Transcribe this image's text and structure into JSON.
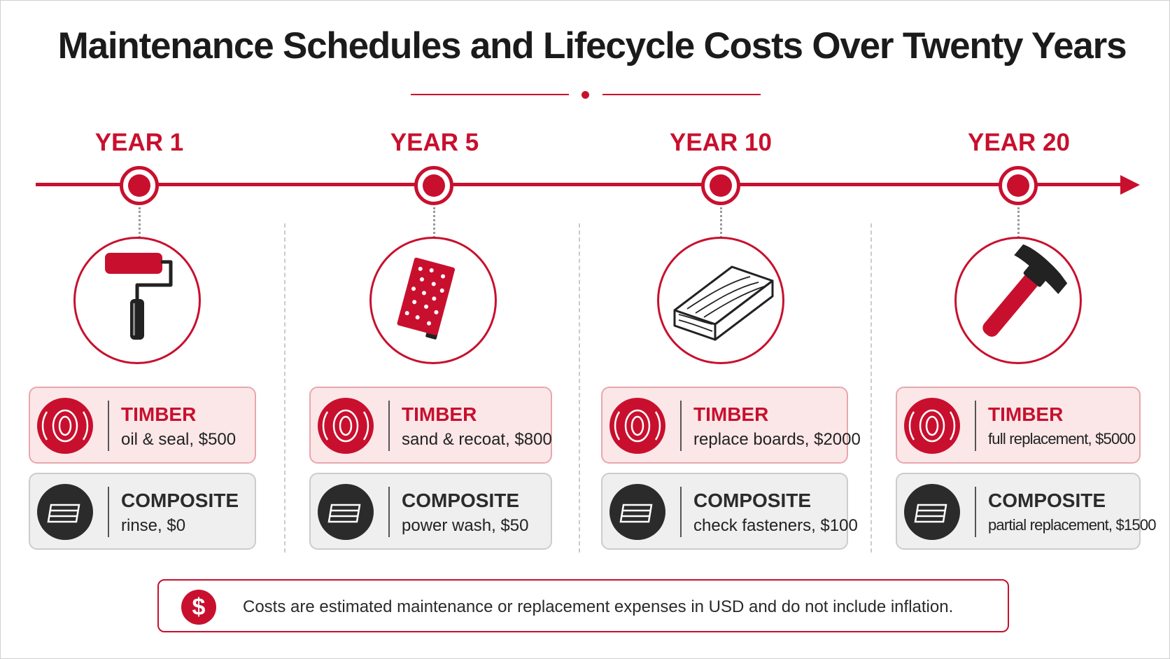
{
  "title": "Maintenance Schedules and Lifecycle Costs Over Twenty Years",
  "colors": {
    "accent": "#c8102e",
    "dark": "#2b2b2b",
    "timber_card": "#fbe7e8",
    "composite_card": "#efefef"
  },
  "milestones": [
    {
      "year_label": "YEAR 1",
      "icon": "paint-roller-icon",
      "timber": {
        "material": "TIMBER",
        "task": "oil & seal, $500"
      },
      "composite": {
        "material": "COMPOSITE",
        "task": "rinse, $0"
      }
    },
    {
      "year_label": "YEAR 5",
      "icon": "sanding-block-icon",
      "timber": {
        "material": "TIMBER",
        "task": "sand & recoat, $800"
      },
      "composite": {
        "material": "COMPOSITE",
        "task": "power wash, $50"
      }
    },
    {
      "year_label": "YEAR 10",
      "icon": "wood-board-icon",
      "timber": {
        "material": "TIMBER",
        "task": "replace boards, $2000"
      },
      "composite": {
        "material": "COMPOSITE",
        "task": "check fasteners, $100"
      }
    },
    {
      "year_label": "YEAR 20",
      "icon": "hammer-icon",
      "timber": {
        "material": "TIMBER",
        "task": "full replacement, $5000"
      },
      "composite": {
        "material": "COMPOSITE",
        "task": "partial replacement, $1500"
      }
    }
  ],
  "note": {
    "icon_symbol": "$",
    "text": "Costs are estimated maintenance or replacement expenses in USD and do not include inflation."
  }
}
